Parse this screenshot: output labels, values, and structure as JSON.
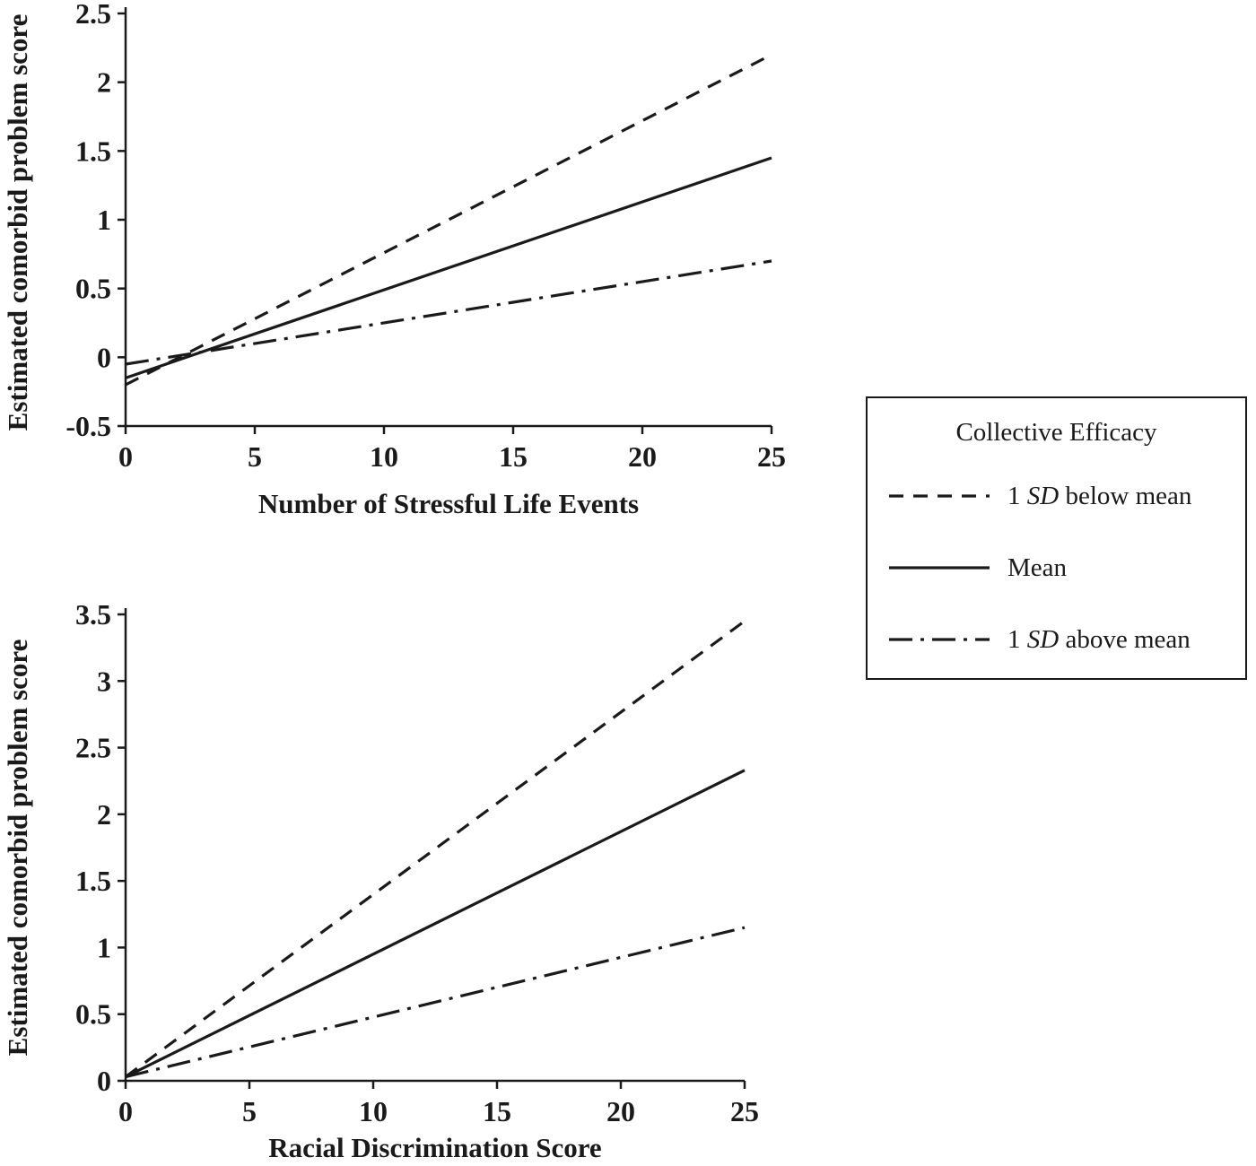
{
  "colors": {
    "line": "#1a1a1a",
    "axis": "#1a1a1a",
    "background": "#ffffff"
  },
  "chart_data": [
    {
      "type": "line",
      "title": "",
      "xlabel": "Number of Stressful Life Events",
      "ylabel": "Estimated comorbid problem score",
      "xlim": [
        0,
        25
      ],
      "ylim": [
        -0.5,
        2.5
      ],
      "xticks": [
        0,
        5,
        10,
        15,
        20,
        25
      ],
      "yticks": [
        -0.5,
        0,
        0.5,
        1,
        1.5,
        2,
        2.5
      ],
      "grid": false,
      "x": [
        0,
        25
      ],
      "series": [
        {
          "name": "1 SD below mean",
          "style": "dashed",
          "values": [
            -0.2,
            2.2
          ]
        },
        {
          "name": "Mean",
          "style": "solid",
          "values": [
            -0.15,
            1.45
          ]
        },
        {
          "name": "1 SD above mean",
          "style": "dashdot",
          "values": [
            -0.05,
            0.7
          ]
        }
      ]
    },
    {
      "type": "line",
      "title": "",
      "xlabel": "Racial Discrimination Score",
      "ylabel": "Estimated comorbid problem score",
      "xlim": [
        0,
        25
      ],
      "ylim": [
        0,
        3.5
      ],
      "xticks": [
        0,
        5,
        10,
        15,
        20,
        25
      ],
      "yticks": [
        0,
        0.5,
        1,
        1.5,
        2,
        2.5,
        3,
        3.5
      ],
      "grid": false,
      "x": [
        0,
        25
      ],
      "series": [
        {
          "name": "1 SD below mean",
          "style": "dashed",
          "values": [
            0.03,
            3.45
          ]
        },
        {
          "name": "Mean",
          "style": "solid",
          "values": [
            0.03,
            2.33
          ]
        },
        {
          "name": "1 SD above mean",
          "style": "dashdot",
          "values": [
            0.03,
            1.15
          ]
        }
      ]
    }
  ],
  "legend": {
    "title": "Collective Efficacy",
    "position": "right",
    "entries": [
      {
        "style": "dashed",
        "pre": "1 ",
        "italic": "SD",
        "post": " below mean"
      },
      {
        "style": "solid",
        "pre": "",
        "italic": "",
        "post": "Mean"
      },
      {
        "style": "dashdot",
        "pre": "1 ",
        "italic": "SD",
        "post": " above mean"
      }
    ]
  }
}
